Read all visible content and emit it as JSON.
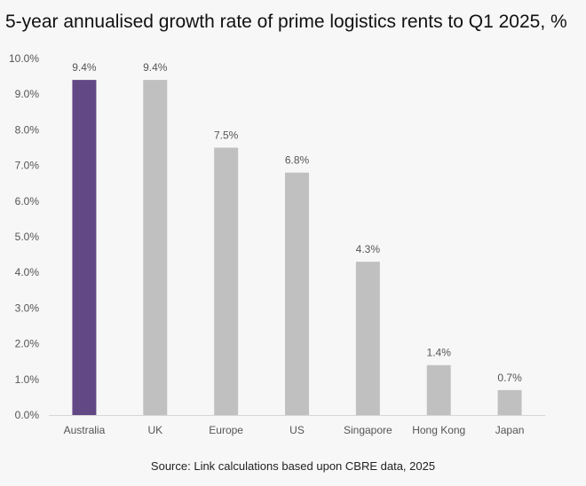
{
  "chart_data": {
    "type": "bar",
    "title": "5-year annualised growth rate of prime logistics rents to Q1 2025, %",
    "xlabel": "",
    "ylabel": "",
    "categories": [
      "Australia",
      "UK",
      "Europe",
      "US",
      "Singapore",
      "Hong Kong",
      "Japan"
    ],
    "values": [
      9.4,
      9.4,
      7.5,
      6.8,
      4.3,
      1.4,
      0.7
    ],
    "data_labels": [
      "9.4%",
      "9.4%",
      "7.5%",
      "6.8%",
      "4.3%",
      "1.4%",
      "0.7%"
    ],
    "ylim": [
      0,
      10
    ],
    "yticks": [
      0,
      1,
      2,
      3,
      4,
      5,
      6,
      7,
      8,
      9,
      10
    ],
    "ytick_labels": [
      "0.0%",
      "1.0%",
      "2.0%",
      "3.0%",
      "4.0%",
      "5.0%",
      "6.0%",
      "7.0%",
      "8.0%",
      "9.0%",
      "10.0%"
    ],
    "highlight_index": 0,
    "grid": false,
    "legend": "none",
    "source": "Source: Link calculations based upon CBRE data, 2025"
  },
  "colors": {
    "highlight_bar": "#634886",
    "bar": "#c0c0c0",
    "axis": "#d6d6d6",
    "background": "#f7f7f7"
  }
}
